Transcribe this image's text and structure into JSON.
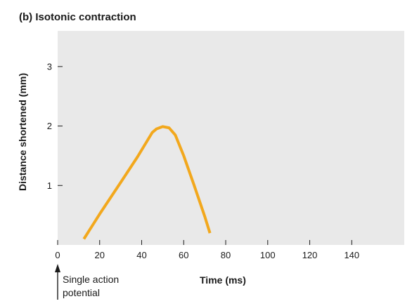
{
  "chart_data": {
    "type": "line",
    "title": "(b) Isotonic contraction",
    "xlabel": "Time (ms)",
    "ylabel": "Distance shortened (mm)",
    "xlim": [
      0,
      165
    ],
    "ylim": [
      0,
      3.6
    ],
    "x_ticks": [
      "0",
      "20",
      "40",
      "60",
      "80",
      "100",
      "120",
      "140"
    ],
    "x_tick_values": [
      0,
      20,
      40,
      60,
      80,
      100,
      120,
      140
    ],
    "y_ticks": [
      "1",
      "2",
      "3"
    ],
    "y_tick_values": [
      1,
      2,
      3
    ],
    "grid": false,
    "background_color": "#e9e9e9",
    "line_color": "#f2a81d",
    "series": [
      {
        "x": [
          12.5,
          20,
          30,
          38,
          45,
          47,
          50,
          53,
          56,
          60,
          65,
          70,
          72.5
        ],
        "y": [
          0.1,
          0.52,
          1.05,
          1.48,
          1.89,
          1.95,
          1.99,
          1.97,
          1.85,
          1.5,
          1.0,
          0.48,
          0.2
        ]
      }
    ],
    "annotation": {
      "x": 0,
      "text_lines": [
        "Single action",
        "potential"
      ]
    }
  }
}
